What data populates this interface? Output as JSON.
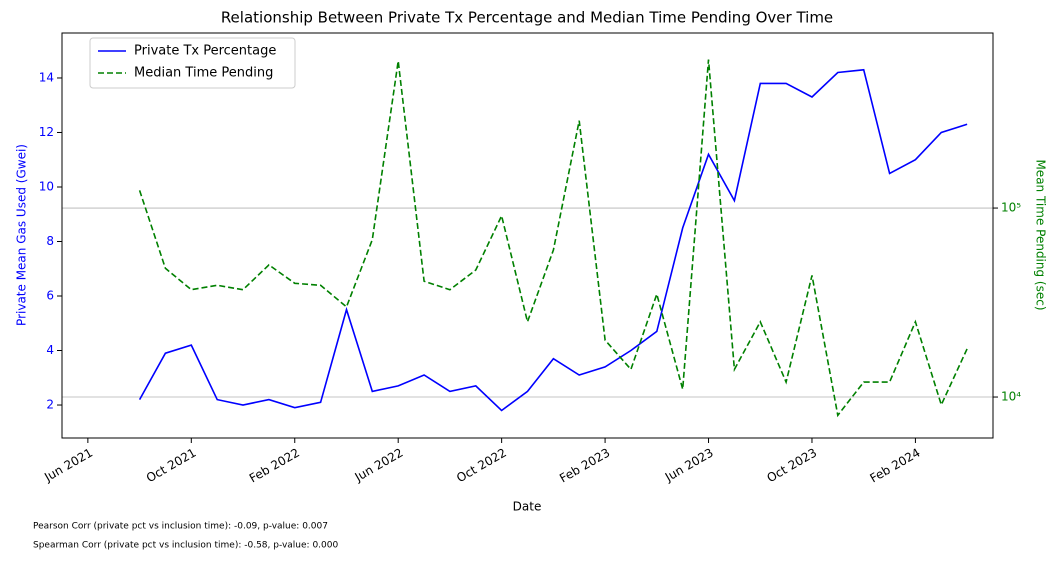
{
  "chart_data": {
    "type": "line",
    "title": "Relationship Between Private Tx Percentage and Median Time Pending Over Time",
    "xlabel": "Date",
    "ylabel": "Private Mean Gas Used (Gwei)",
    "y2label": "Mean Time Pending (sec)",
    "x": [
      "2021-08",
      "2021-09",
      "2021-10",
      "2021-11",
      "2021-12",
      "2022-01",
      "2022-02",
      "2022-03",
      "2022-04",
      "2022-05",
      "2022-06",
      "2022-07",
      "2022-08",
      "2022-09",
      "2022-10",
      "2022-11",
      "2022-12",
      "2023-01",
      "2023-02",
      "2023-03",
      "2023-04",
      "2023-05",
      "2023-06",
      "2023-07",
      "2023-08",
      "2023-09",
      "2023-10",
      "2023-11",
      "2023-12",
      "2024-01",
      "2024-02",
      "2024-03",
      "2024-04"
    ],
    "series": [
      {
        "name": "Private Tx Percentage",
        "color": "blue",
        "linestyle": "solid",
        "axis": "y",
        "values": [
          2.2,
          3.9,
          4.2,
          2.2,
          2.0,
          2.2,
          1.9,
          2.1,
          5.5,
          2.5,
          2.7,
          3.1,
          2.5,
          2.7,
          1.8,
          2.5,
          3.7,
          3.1,
          3.4,
          4.0,
          4.7,
          8.5,
          11.2,
          9.5,
          13.8,
          13.8,
          13.3,
          14.2,
          14.3,
          10.5,
          11.0,
          12.0,
          12.3
        ]
      },
      {
        "name": "Median Time Pending",
        "color": "green",
        "linestyle": "dashed",
        "axis": "y2",
        "values": [
          124000,
          48000,
          37000,
          39000,
          37000,
          50000,
          40000,
          39000,
          30000,
          68000,
          600000,
          41000,
          37000,
          47000,
          91000,
          25000,
          60000,
          290000,
          20000,
          14000,
          35000,
          11000,
          610000,
          14000,
          25000,
          12000,
          44000,
          8000,
          12000,
          12000,
          25000,
          9100,
          18000
        ]
      }
    ],
    "xlim": [
      "2021-05",
      "2024-05"
    ],
    "xticks": [
      {
        "value": "2021-06",
        "label": "Jun 2021"
      },
      {
        "value": "2021-10",
        "label": "Oct 2021"
      },
      {
        "value": "2022-02",
        "label": "Feb 2022"
      },
      {
        "value": "2022-06",
        "label": "Jun 2022"
      },
      {
        "value": "2022-10",
        "label": "Oct 2022"
      },
      {
        "value": "2023-02",
        "label": "Feb 2023"
      },
      {
        "value": "2023-06",
        "label": "Jun 2023"
      },
      {
        "value": "2023-10",
        "label": "Oct 2023"
      },
      {
        "value": "2024-02",
        "label": "Feb 2024"
      }
    ],
    "ylim": [
      0.79,
      15.65
    ],
    "yticks": [
      2,
      4,
      6,
      8,
      10,
      12,
      14
    ],
    "y2lim": [
      6070,
      844000
    ],
    "y2ticks": [
      {
        "value": 10000,
        "label": "10⁴"
      },
      {
        "value": 100000,
        "label": "10⁵"
      }
    ],
    "y2scale": "log",
    "grid": "y2",
    "legend": "upper-left",
    "annotations": [
      "Pearson Corr (private pct vs inclusion time): -0.09, p-value: 0.007",
      "Spearman Corr (private pct vs inclusion time): -0.58, p-value: 0.000"
    ]
  }
}
